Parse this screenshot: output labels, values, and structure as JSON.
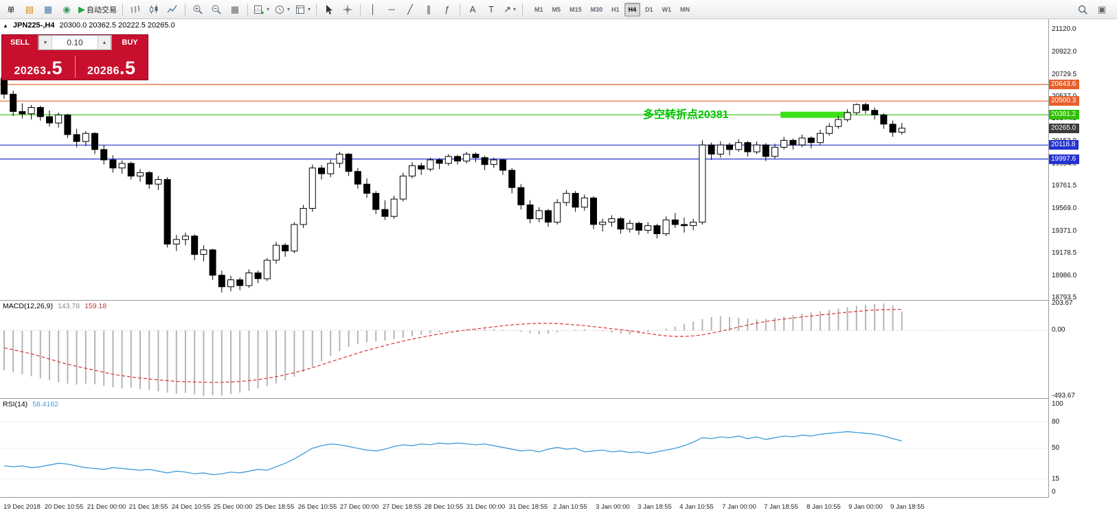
{
  "toolbar": {
    "dropdown_glyph": "▾",
    "items": [
      {
        "name": "new-order-button",
        "label": "单"
      },
      {
        "name": "market-watch-icon",
        "glyph": "▤",
        "color": "#d89018"
      },
      {
        "name": "data-window-icon",
        "glyph": "▦",
        "color": "#4a78b0"
      },
      {
        "name": "navigator-icon",
        "glyph": "◉",
        "color": "#2e9e5b"
      },
      {
        "name": "autotrading-button",
        "glyph": "▶",
        "color": "#21a842",
        "label": "自动交易"
      },
      {
        "sep": true
      },
      {
        "name": "bar-chart-icon",
        "svg": "bars"
      },
      {
        "name": "candlestick-chart-icon",
        "svg": "candles"
      },
      {
        "name": "line-chart-icon",
        "svg": "line"
      },
      {
        "sep": true
      },
      {
        "name": "zoom-in-icon",
        "svg": "zoomin"
      },
      {
        "name": "zoom-out-icon",
        "svg": "zoomout"
      },
      {
        "name": "tile-windows-icon",
        "glyph": "▦",
        "color": "#666"
      },
      {
        "sep": true
      },
      {
        "name": "new-chart-icon",
        "svg": "newchart",
        "dropdown": true
      },
      {
        "name": "profiles-icon",
        "svg": "clock",
        "dropdown": true
      },
      {
        "name": "templates-icon",
        "svg": "template",
        "dropdown": true
      },
      {
        "sep": true
      },
      {
        "name": "cursor-icon",
        "svg": "cursor"
      },
      {
        "name": "crosshair-icon",
        "svg": "cross"
      },
      {
        "sep": true
      },
      {
        "name": "vertical-line-icon",
        "glyph": "│",
        "color": "#444"
      },
      {
        "name": "horizontal-line-icon",
        "glyph": "─",
        "color": "#444"
      },
      {
        "name": "trendline-icon",
        "glyph": "╱",
        "color": "#444"
      },
      {
        "name": "equidistant-channel-icon",
        "glyph": "∥",
        "color": "#444"
      },
      {
        "name": "fibonacci-icon",
        "glyph": "ƒ",
        "color": "#444"
      },
      {
        "sep": true
      },
      {
        "name": "text-tool-icon",
        "glyph": "A",
        "color": "#444"
      },
      {
        "name": "text-label-icon",
        "glyph": "T",
        "color": "#444"
      },
      {
        "name": "arrows-tool-icon",
        "glyph": "↗",
        "color": "#444",
        "dropdown": true
      },
      {
        "sep": true
      }
    ],
    "timeframes": [
      "M1",
      "M5",
      "M15",
      "M30",
      "H1",
      "H4",
      "D1",
      "W1",
      "MN"
    ],
    "active_timeframe": "H4",
    "right_items": [
      {
        "name": "search-icon",
        "svg": "search"
      },
      {
        "name": "chart-shift-icon",
        "glyph": "▣",
        "color": "#666"
      }
    ]
  },
  "chart": {
    "collapse_glyph": "▲",
    "symbol": "JPN225-,H4",
    "ohlc": "20300.0 20362.5 20222.5 20265.0"
  },
  "trade_panel": {
    "bg": "#c8102e",
    "sell_label": "SELL",
    "buy_label": "BUY",
    "volume": "0.10",
    "volume_down_glyph": "▼",
    "volume_up_glyph": "▲",
    "sell_price_main": "20263",
    "sell_price_frac": ".5",
    "buy_price_main": "20286",
    "buy_price_frac": ".5"
  },
  "annotation": {
    "text": "多空转折点20381",
    "color": "#00c400",
    "zone_color": "#3ce019",
    "x": 936,
    "price": 20381.2
  },
  "levels": [
    {
      "label": "20643.6",
      "price": 20643.6,
      "color": "#e8602c",
      "line": true
    },
    {
      "label": "20500.3",
      "price": 20500.3,
      "color": "#e8602c",
      "line": true
    },
    {
      "label": "20381.2",
      "price": 20381.2,
      "color": "#2fbf00",
      "line": true,
      "zone": {
        "from_bar": 86,
        "to_bar": 93
      }
    },
    {
      "label": "20265.0",
      "price": 20265.0,
      "color": "#3c3c3c",
      "line": false
    },
    {
      "label": "20118.8",
      "price": 20118.8,
      "color": "#2433d0",
      "line": true
    },
    {
      "label": "19997.6",
      "price": 19997.6,
      "color": "#2433d0",
      "line": true
    }
  ],
  "price_axis": {
    "labels": [
      "21120.0",
      "20922.0",
      "20729.5",
      "20537.0",
      "20344.5",
      "20152.0",
      "19954.0",
      "19761.5",
      "19569.0",
      "19371.0",
      "19178.5",
      "18986.0",
      "18793.5"
    ]
  },
  "macd": {
    "title": "MACD(12,26,9)",
    "value_main": "143.78",
    "value_signal": "159.18",
    "axis": [
      "203.67",
      "0.00",
      "-493.67"
    ]
  },
  "rsi": {
    "title": "RSI(14)",
    "value": "58.4162",
    "axis": [
      "100",
      "80",
      "50",
      "15",
      "0"
    ],
    "levels": [
      80,
      50,
      15
    ]
  },
  "time_axis": {
    "labels": [
      "19 Dec 2018",
      "20 Dec 10:55",
      "21 Dec 00:00",
      "21 Dec 18:55",
      "24 Dec 10:55",
      "25 Dec 00:00",
      "25 Dec 18:55",
      "26 Dec 10:55",
      "27 Dec 00:00",
      "27 Dec 18:55",
      "28 Dec 10:55",
      "31 Dec 00:00",
      "31 Dec 18:55",
      "2 Jan 10:55",
      "3 Jan 00:00",
      "3 Jan 18:55",
      "4 Jan 10:55",
      "7 Jan 00:00",
      "7 Jan 18:55",
      "8 Jan 10:55",
      "9 Jan 00:00",
      "9 Jan 18:55"
    ]
  },
  "chart_data": [
    {
      "type": "candlestick",
      "name": "JPN225- H4",
      "ylim": [
        18775,
        21210
      ],
      "ohlc": [
        [
          20700,
          20735,
          20520,
          20560
        ],
        [
          20560,
          20590,
          20370,
          20410
        ],
        [
          20410,
          20480,
          20350,
          20390
        ],
        [
          20390,
          20465,
          20340,
          20445
        ],
        [
          20445,
          20460,
          20330,
          20365
        ],
        [
          20365,
          20420,
          20280,
          20310
        ],
        [
          20310,
          20400,
          20270,
          20380
        ],
        [
          20380,
          20390,
          20180,
          20210
        ],
        [
          20210,
          20260,
          20100,
          20150
        ],
        [
          20150,
          20240,
          20110,
          20220
        ],
        [
          20220,
          20230,
          20040,
          20080
        ],
        [
          20080,
          20120,
          19950,
          19990
        ],
        [
          19990,
          20030,
          19880,
          19920
        ],
        [
          19920,
          19985,
          19870,
          19960
        ],
        [
          19960,
          19975,
          19820,
          19850
        ],
        [
          19850,
          19910,
          19800,
          19880
        ],
        [
          19880,
          19895,
          19740,
          19780
        ],
        [
          19780,
          19850,
          19730,
          19820
        ],
        [
          19820,
          19840,
          19230,
          19260
        ],
        [
          19260,
          19340,
          19200,
          19300
        ],
        [
          19300,
          19360,
          19250,
          19330
        ],
        [
          19330,
          19345,
          19120,
          19170
        ],
        [
          19170,
          19250,
          19110,
          19210
        ],
        [
          19210,
          19220,
          18950,
          18990
        ],
        [
          18990,
          19030,
          18840,
          18890
        ],
        [
          18890,
          18985,
          18850,
          18950
        ],
        [
          18950,
          18970,
          18860,
          18900
        ],
        [
          18900,
          19040,
          18880,
          19010
        ],
        [
          19010,
          19030,
          18920,
          18960
        ],
        [
          18960,
          19140,
          18940,
          19120
        ],
        [
          19120,
          19280,
          19090,
          19250
        ],
        [
          19250,
          19270,
          19150,
          19200
        ],
        [
          19200,
          19450,
          19180,
          19430
        ],
        [
          19430,
          19600,
          19400,
          19570
        ],
        [
          19570,
          19950,
          19540,
          19920
        ],
        [
          19920,
          19945,
          19820,
          19870
        ],
        [
          19870,
          19990,
          19840,
          19960
        ],
        [
          19960,
          20060,
          19920,
          20040
        ],
        [
          20040,
          20050,
          19850,
          19890
        ],
        [
          19890,
          19920,
          19740,
          19780
        ],
        [
          19780,
          19830,
          19660,
          19700
        ],
        [
          19700,
          19720,
          19520,
          19560
        ],
        [
          19560,
          19640,
          19470,
          19500
        ],
        [
          19500,
          19680,
          19480,
          19650
        ],
        [
          19650,
          19880,
          19630,
          19850
        ],
        [
          19850,
          19970,
          19830,
          19940
        ],
        [
          19940,
          19965,
          19860,
          19910
        ],
        [
          19910,
          20010,
          19890,
          19990
        ],
        [
          19990,
          20005,
          19910,
          19960
        ],
        [
          19960,
          20040,
          19940,
          20020
        ],
        [
          20020,
          20035,
          19950,
          19980
        ],
        [
          19980,
          20060,
          19960,
          20040
        ],
        [
          20040,
          20055,
          19970,
          20010
        ],
        [
          20010,
          20025,
          19900,
          19950
        ],
        [
          19950,
          20010,
          19920,
          19990
        ],
        [
          19990,
          20000,
          19860,
          19900
        ],
        [
          19900,
          19920,
          19700,
          19750
        ],
        [
          19750,
          19780,
          19560,
          19600
        ],
        [
          19600,
          19640,
          19440,
          19480
        ],
        [
          19480,
          19580,
          19450,
          19550
        ],
        [
          19550,
          19565,
          19410,
          19450
        ],
        [
          19450,
          19650,
          19430,
          19620
        ],
        [
          19620,
          19730,
          19590,
          19700
        ],
        [
          19700,
          19720,
          19540,
          19580
        ],
        [
          19580,
          19690,
          19550,
          19660
        ],
        [
          19660,
          19675,
          19390,
          19430
        ],
        [
          19430,
          19480,
          19370,
          19450
        ],
        [
          19450,
          19510,
          19410,
          19480
        ],
        [
          19480,
          19495,
          19350,
          19390
        ],
        [
          19390,
          19470,
          19360,
          19440
        ],
        [
          19440,
          19455,
          19340,
          19380
        ],
        [
          19380,
          19450,
          19350,
          19420
        ],
        [
          19420,
          19435,
          19310,
          19350
        ],
        [
          19350,
          19500,
          19330,
          19470
        ],
        [
          19470,
          19530,
          19400,
          19430
        ],
        [
          19430,
          19490,
          19360,
          19420
        ],
        [
          19420,
          19480,
          19380,
          19450
        ],
        [
          19450,
          20160,
          19430,
          20120
        ],
        [
          20120,
          20140,
          19990,
          20040
        ],
        [
          20040,
          20150,
          20010,
          20120
        ],
        [
          20120,
          20140,
          20030,
          20080
        ],
        [
          20080,
          20170,
          20060,
          20140
        ],
        [
          20140,
          20155,
          20020,
          20060
        ],
        [
          20060,
          20150,
          20040,
          20120
        ],
        [
          20120,
          20135,
          19980,
          20020
        ],
        [
          20020,
          20130,
          20000,
          20100
        ],
        [
          20100,
          20190,
          20080,
          20160
        ],
        [
          20160,
          20175,
          20080,
          20120
        ],
        [
          20120,
          20210,
          20100,
          20180
        ],
        [
          20180,
          20195,
          20090,
          20140
        ],
        [
          20140,
          20250,
          20120,
          20220
        ],
        [
          20220,
          20310,
          20200,
          20280
        ],
        [
          20280,
          20370,
          20260,
          20340
        ],
        [
          20340,
          20430,
          20320,
          20400
        ],
        [
          20400,
          20480,
          20380,
          20470
        ],
        [
          20470,
          20485,
          20390,
          20420
        ],
        [
          20420,
          20445,
          20340,
          20380
        ],
        [
          20380,
          20395,
          20260,
          20300
        ],
        [
          20300,
          20330,
          20190,
          20230
        ],
        [
          20230,
          20310,
          20210,
          20265
        ]
      ]
    },
    {
      "type": "macd",
      "ylim": [
        -510,
        225
      ],
      "hist_color": "#b4b4b4",
      "signal_color": "#d83434",
      "hist": [
        -300,
        -315,
        -330,
        -345,
        -360,
        -375,
        -390,
        -400,
        -408,
        -400,
        -405,
        -418,
        -428,
        -438,
        -430,
        -440,
        -448,
        -458,
        -468,
        -478,
        -470,
        -482,
        -493.67,
        -488,
        -490,
        -480,
        -468,
        -455,
        -438,
        -418,
        -398,
        -375,
        -348,
        -312,
        -272,
        -232,
        -192,
        -155,
        -122,
        -100,
        -88,
        -82,
        -75,
        -66,
        -54,
        -42,
        -31,
        -21,
        -12,
        -5,
        2,
        8,
        12,
        13,
        10,
        5,
        -2,
        -10,
        -20,
        -28,
        -24,
        -14,
        -4,
        6,
        10,
        4,
        -6,
        -16,
        -24,
        -28,
        -22,
        -12,
        0,
        14,
        30,
        48,
        68,
        88,
        102,
        108,
        102,
        96,
        90,
        84,
        88,
        96,
        106,
        116,
        126,
        136,
        146,
        156,
        166,
        176,
        186,
        194,
        200,
        203.67,
        190,
        143.78
      ],
      "signal": [
        -130,
        -145,
        -160,
        -175,
        -195,
        -215,
        -235,
        -255,
        -270,
        -285,
        -300,
        -315,
        -330,
        -340,
        -350,
        -358,
        -365,
        -372,
        -378,
        -383,
        -386,
        -388,
        -390,
        -391,
        -390,
        -388,
        -384,
        -378,
        -370,
        -360,
        -348,
        -334,
        -318,
        -300,
        -280,
        -258,
        -236,
        -214,
        -192,
        -170,
        -150,
        -131,
        -113,
        -96,
        -80,
        -65,
        -51,
        -38,
        -26,
        -15,
        -5,
        4,
        12,
        20,
        28,
        36,
        43,
        48,
        52,
        54,
        54,
        52,
        48,
        43,
        37,
        30,
        22,
        14,
        6,
        -2,
        -12,
        -22,
        -32,
        -40,
        -44,
        -44,
        -40,
        -32,
        -20,
        -6,
        10,
        26,
        42,
        56,
        68,
        78,
        87,
        95,
        103,
        110,
        117,
        124,
        131,
        138,
        144,
        150,
        154,
        157,
        159,
        159.18
      ]
    },
    {
      "type": "line",
      "name": "RSI(14)",
      "ylim": [
        0,
        100
      ],
      "color": "#3d9ad6",
      "values": [
        30,
        29,
        30,
        28,
        29,
        31,
        33,
        32,
        30,
        28,
        27,
        26,
        28,
        27,
        26,
        25,
        26,
        24,
        22,
        24,
        23,
        21,
        22,
        20,
        21,
        23,
        22,
        24,
        26,
        25,
        29,
        33,
        38,
        44,
        50,
        53,
        55,
        54,
        52,
        50,
        48,
        47,
        49,
        52,
        54,
        53,
        55,
        54,
        56,
        55,
        56,
        55,
        54,
        55,
        53,
        51,
        49,
        47,
        48,
        46,
        49,
        51,
        49,
        50,
        46,
        47,
        48,
        46,
        47,
        45,
        46,
        44,
        46,
        48,
        50,
        53,
        57,
        62,
        61,
        63,
        62,
        64,
        61,
        63,
        60,
        62,
        64,
        63,
        65,
        64,
        66,
        67,
        68,
        69,
        68,
        67,
        66,
        64,
        61,
        58.4
      ]
    }
  ]
}
